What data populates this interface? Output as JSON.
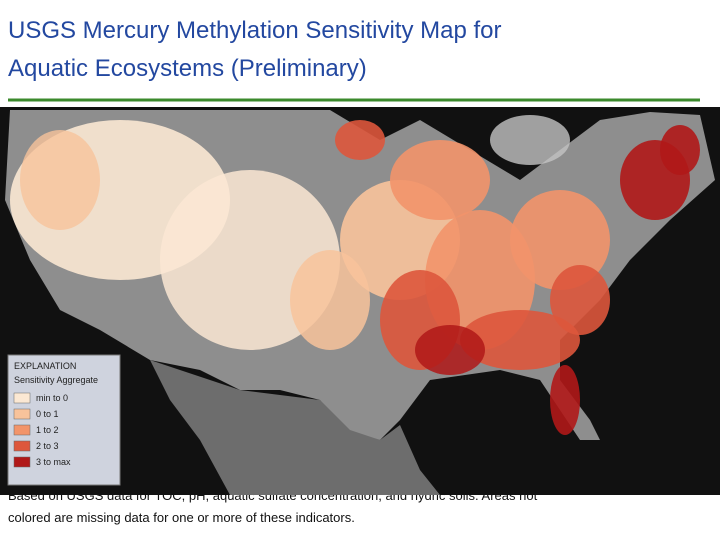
{
  "header": {
    "title_lines": [
      "USGS Mercury Methylation Sensitivity Map for",
      "Aquatic Ecosystems (Preliminary)"
    ]
  },
  "legend": {
    "title": "EXPLANATION",
    "subtitle": "Sensitivity Aggregate",
    "items": [
      {
        "label": "min to 0",
        "color": "#fbe8d3"
      },
      {
        "label": "0 to 1",
        "color": "#f8c39b"
      },
      {
        "label": "1 to 2",
        "color": "#f2946a"
      },
      {
        "label": "2 to 3",
        "color": "#dd573c"
      },
      {
        "label": "3 to max",
        "color": "#b01818"
      }
    ]
  },
  "caption": {
    "lines": [
      "Based on USGS data for TOC, pH, aquatic sulfate concentration, and hydric soils. Areas not",
      "colored are missing data for one or more of these indicators."
    ]
  }
}
